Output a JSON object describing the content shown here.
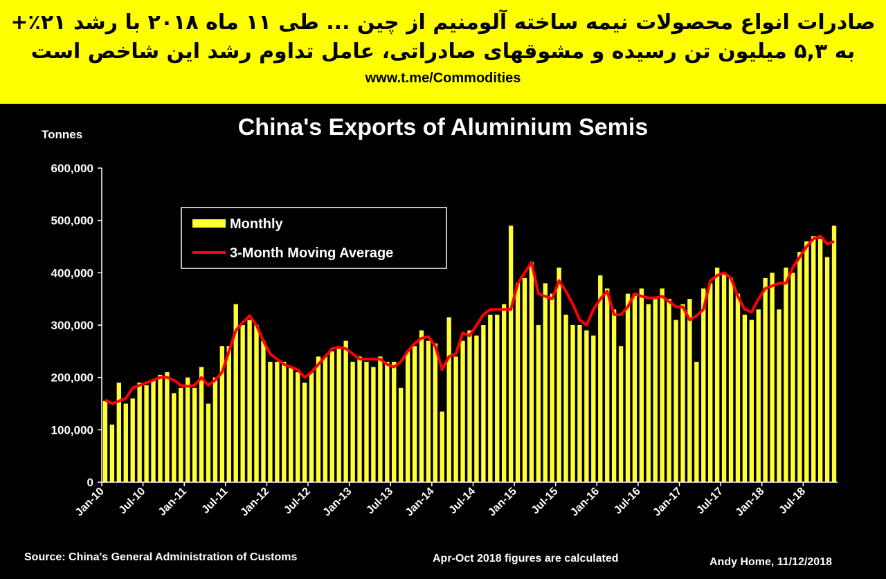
{
  "header": {
    "lines": [
      "صادرات انواع محصولات نیمه ساخته آلومنیم از چین ... طی ۱۱ ماه ۲۰۱۸ با رشد ۲۱٪+",
      "به ۵,۳ میلیون تن رسیده و مشوقهای صادراتی، عامل تداوم رشد این شاخص است"
    ],
    "link": "www.t.me/Commodities"
  },
  "chart_data": {
    "type": "bar",
    "title": "China's Exports of Aluminium Semis",
    "y_label": "Tonnes",
    "notes": [
      "Source: China's General Administration of Customs",
      "Apr-Oct 2018 figures are calculated",
      "Andy Home, 11/12/2018"
    ],
    "categories": [
      "Jan-10",
      null,
      null,
      null,
      null,
      null,
      "Jul-10",
      null,
      null,
      null,
      null,
      null,
      "Jan-11",
      null,
      null,
      null,
      null,
      null,
      "Jul-11",
      null,
      null,
      null,
      null,
      null,
      "Jan-12",
      null,
      null,
      null,
      null,
      null,
      "Jul-12",
      null,
      null,
      null,
      null,
      null,
      "Jan-13",
      null,
      null,
      null,
      null,
      null,
      "Jul-13",
      null,
      null,
      null,
      null,
      null,
      "Jan-14",
      null,
      null,
      null,
      null,
      null,
      "Jul-14",
      null,
      null,
      null,
      null,
      null,
      "Jan-15",
      null,
      null,
      null,
      null,
      null,
      "Jul-15",
      null,
      null,
      null,
      null,
      null,
      "Jan-16",
      null,
      null,
      null,
      null,
      null,
      "Jul-16",
      null,
      null,
      null,
      null,
      null,
      "Jan-17",
      null,
      null,
      null,
      null,
      null,
      "Jul-17",
      null,
      null,
      null,
      null,
      null,
      "Jan-18",
      null,
      null,
      null,
      null,
      null,
      "Jul-18",
      null,
      null,
      null,
      null
    ],
    "series": [
      {
        "name": "Monthly",
        "type": "bar",
        "color": "#ffff33",
        "values": [
          155000,
          110000,
          190000,
          150000,
          160000,
          190000,
          185000,
          195000,
          205000,
          210000,
          170000,
          180000,
          200000,
          180000,
          220000,
          150000,
          200000,
          260000,
          260000,
          340000,
          300000,
          310000,
          300000,
          270000,
          230000,
          230000,
          230000,
          220000,
          210000,
          190000,
          210000,
          240000,
          240000,
          250000,
          260000,
          270000,
          230000,
          240000,
          230000,
          220000,
          240000,
          230000,
          230000,
          180000,
          250000,
          260000,
          290000,
          270000,
          265000,
          135000,
          315000,
          240000,
          270000,
          290000,
          280000,
          300000,
          320000,
          320000,
          340000,
          490000,
          380000,
          390000,
          420000,
          300000,
          380000,
          360000,
          410000,
          320000,
          300000,
          300000,
          290000,
          280000,
          395000,
          370000,
          330000,
          260000,
          360000,
          360000,
          370000,
          340000,
          350000,
          370000,
          350000,
          310000,
          340000,
          350000,
          230000,
          370000,
          380000,
          410000,
          400000,
          390000,
          360000,
          320000,
          310000,
          330000,
          390000,
          400000,
          330000,
          410000,
          400000,
          440000,
          460000,
          470000,
          465000,
          430000,
          490000
        ]
      },
      {
        "name": "3-Month Moving Average",
        "type": "line",
        "color": "#ff0000",
        "values": [
          157000,
          150000,
          155000,
          160000,
          180000,
          185000,
          190000,
          195000,
          200000,
          200000,
          195000,
          185000,
          183000,
          185000,
          200000,
          185000,
          195000,
          210000,
          250000,
          290000,
          305000,
          318000,
          300000,
          270000,
          245000,
          235000,
          225000,
          220000,
          215000,
          200000,
          210000,
          225000,
          240000,
          255000,
          258000,
          255000,
          245000,
          235000,
          235000,
          235000,
          235000,
          225000,
          220000,
          230000,
          250000,
          265000,
          275000,
          278000,
          260000,
          215000,
          240000,
          245000,
          285000,
          280000,
          300000,
          320000,
          330000,
          330000,
          330000,
          330000,
          380000,
          400000,
          420000,
          360000,
          355000,
          350000,
          385000,
          365000,
          340000,
          310000,
          300000,
          330000,
          350000,
          365000,
          320000,
          320000,
          335000,
          360000,
          355000,
          352000,
          352000,
          355000,
          345000,
          335000,
          335000,
          310000,
          318000,
          330000,
          385000,
          395000,
          400000,
          390000,
          355000,
          330000,
          325000,
          350000,
          370000,
          375000,
          380000,
          380000,
          410000,
          430000,
          450000,
          465000,
          470000,
          455000,
          460000
        ]
      }
    ],
    "ylim": [
      0,
      600000
    ],
    "yticks": [
      0,
      {
        "value": 100000,
        "label": "100,000"
      },
      {
        "value": 200000,
        "label": "200,000"
      },
      {
        "value": 300000,
        "label": "300,000"
      },
      {
        "value": 400000,
        "label": "400,000"
      },
      {
        "value": 500000,
        "label": "500,000"
      },
      {
        "value": 600000,
        "label": "600,000"
      }
    ]
  }
}
